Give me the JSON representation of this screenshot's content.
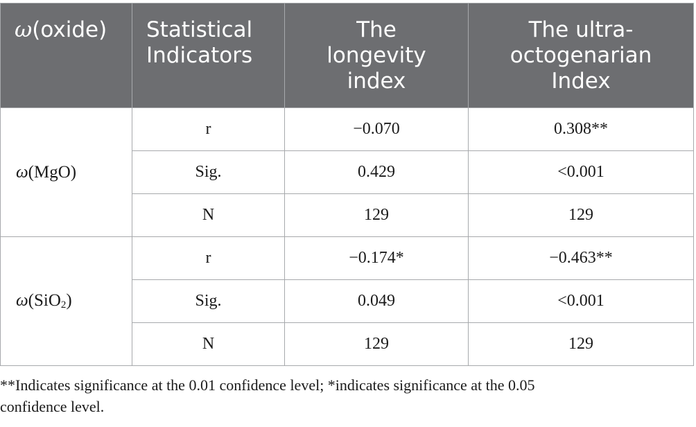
{
  "table": {
    "headers": [
      {
        "prefix": "ω",
        "text": "(oxide)"
      },
      {
        "lines": [
          "Statistical",
          "Indicators"
        ]
      },
      {
        "lines": [
          "The",
          "longevity",
          "index"
        ]
      },
      {
        "lines": [
          "The ultra-",
          "octogenarian",
          "Index"
        ]
      }
    ],
    "groups": [
      {
        "label_prefix": "ω",
        "label_main": "(MgO)",
        "label_sub": "",
        "label_tail": "",
        "rows": [
          {
            "indicator": "r",
            "longevity": "−0.070",
            "ultra": "0.308**"
          },
          {
            "indicator": "Sig.",
            "longevity": "0.429",
            "ultra": "<0.001"
          },
          {
            "indicator": "N",
            "longevity": "129",
            "ultra": "129"
          }
        ]
      },
      {
        "label_prefix": "ω",
        "label_main": "(SiO",
        "label_sub": "2",
        "label_tail": ")",
        "rows": [
          {
            "indicator": "r",
            "longevity": "−0.174*",
            "ultra": "−0.463**"
          },
          {
            "indicator": "Sig.",
            "longevity": "0.049",
            "ultra": "<0.001"
          },
          {
            "indicator": "N",
            "longevity": "129",
            "ultra": "129"
          }
        ]
      }
    ]
  },
  "footnote": {
    "line1": "**Indicates significance at the 0.01 confidence level; *indicates significance at the 0.05",
    "line2": "confidence level."
  },
  "colors": {
    "header_bg": "#6d6e71",
    "header_text": "#ffffff",
    "border": "#a7a9ac"
  }
}
